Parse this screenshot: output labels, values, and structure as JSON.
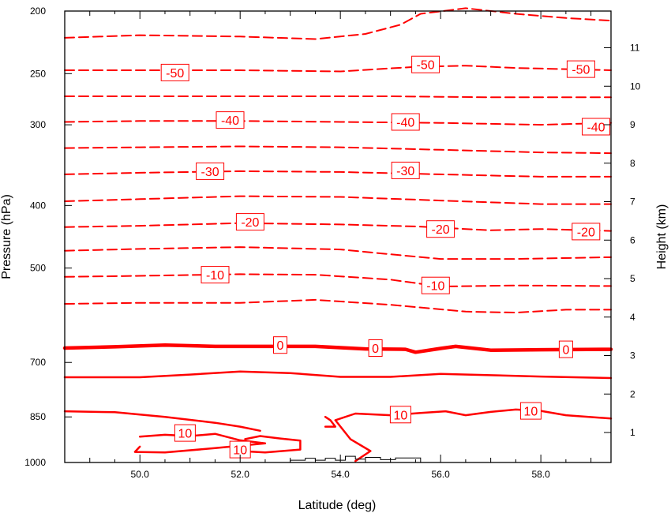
{
  "chart_data": {
    "type": "line",
    "xlabel": "Latitude (deg)",
    "ylabel_left": "Pressure (hPa)",
    "ylabel_right": "Height (km)",
    "xlim": [
      48.5,
      59.4
    ],
    "pressure_lim": [
      1000,
      200
    ],
    "x_ticks": [
      {
        "value": 50.0,
        "label": "50.0"
      },
      {
        "value": 52.0,
        "label": "52.0"
      },
      {
        "value": 54.0,
        "label": "54.0"
      },
      {
        "value": 56.0,
        "label": "56.0"
      },
      {
        "value": 58.0,
        "label": "58.0"
      }
    ],
    "pressure_ticks": [
      {
        "value": 200,
        "label": "200"
      },
      {
        "value": 250,
        "label": "250"
      },
      {
        "value": 300,
        "label": "300"
      },
      {
        "value": 400,
        "label": "400"
      },
      {
        "value": 500,
        "label": "500"
      },
      {
        "value": 700,
        "label": "700"
      },
      {
        "value": 850,
        "label": "850"
      },
      {
        "value": 1000,
        "label": "1000"
      }
    ],
    "height_ticks": [
      {
        "value": 1,
        "label": "1"
      },
      {
        "value": 2,
        "label": "2"
      },
      {
        "value": 3,
        "label": "3"
      },
      {
        "value": 4,
        "label": "4"
      },
      {
        "value": 5,
        "label": "5"
      },
      {
        "value": 6,
        "label": "6"
      },
      {
        "value": 7,
        "label": "7"
      },
      {
        "value": 8,
        "label": "8"
      },
      {
        "value": 9,
        "label": "9"
      },
      {
        "value": 10,
        "label": "10"
      },
      {
        "value": 11,
        "label": "11"
      }
    ],
    "contour_color": "#ff0000",
    "series": [
      {
        "level": -55,
        "style": "dashed",
        "points": [
          [
            48.5,
            220
          ],
          [
            50,
            218
          ],
          [
            52,
            219
          ],
          [
            53.5,
            221
          ],
          [
            54.5,
            217
          ],
          [
            55.2,
            210
          ],
          [
            55.6,
            202
          ],
          [
            56.5,
            198
          ],
          [
            57.5,
            202
          ],
          [
            58.5,
            205
          ],
          [
            59.4,
            207
          ]
        ]
      },
      {
        "level": -50,
        "style": "dashed",
        "points": [
          [
            48.5,
            247
          ],
          [
            50,
            247
          ],
          [
            52,
            247
          ],
          [
            54,
            248
          ],
          [
            55.5,
            244
          ],
          [
            56.5,
            243
          ],
          [
            57.5,
            245
          ],
          [
            59.4,
            247
          ]
        ]
      },
      {
        "level": -45,
        "style": "dashed",
        "points": [
          [
            48.5,
            271
          ],
          [
            52,
            271
          ],
          [
            55,
            271
          ],
          [
            57,
            272
          ],
          [
            59.4,
            272
          ]
        ]
      },
      {
        "level": -40,
        "style": "dashed",
        "points": [
          [
            48.5,
            297
          ],
          [
            50,
            296
          ],
          [
            52,
            296
          ],
          [
            54,
            297
          ],
          [
            56,
            298
          ],
          [
            58,
            300
          ],
          [
            59.4,
            298
          ]
        ]
      },
      {
        "level": -35,
        "style": "dashed",
        "points": [
          [
            48.5,
            326
          ],
          [
            50,
            325
          ],
          [
            52,
            324
          ],
          [
            54,
            325
          ],
          [
            56,
            328
          ],
          [
            58,
            331
          ],
          [
            59.4,
            332
          ]
        ]
      },
      {
        "level": -30,
        "style": "dashed",
        "points": [
          [
            48.5,
            358
          ],
          [
            50,
            356
          ],
          [
            52,
            354
          ],
          [
            54,
            355
          ],
          [
            56,
            358
          ],
          [
            58,
            361
          ],
          [
            59.4,
            361
          ]
        ]
      },
      {
        "level": -25,
        "style": "dashed",
        "points": [
          [
            48.5,
            394
          ],
          [
            50,
            391
          ],
          [
            52,
            387
          ],
          [
            54,
            388
          ],
          [
            56,
            393
          ],
          [
            58,
            398
          ],
          [
            59.4,
            398
          ]
        ]
      },
      {
        "level": -20,
        "style": "dashed",
        "points": [
          [
            48.5,
            432
          ],
          [
            50,
            430
          ],
          [
            52,
            426
          ],
          [
            54,
            428
          ],
          [
            55.5,
            431
          ],
          [
            57,
            437
          ],
          [
            58,
            435
          ],
          [
            59.4,
            438
          ]
        ]
      },
      {
        "level": -15,
        "style": "dashed",
        "points": [
          [
            48.5,
            470
          ],
          [
            50,
            467
          ],
          [
            52,
            464
          ],
          [
            54,
            468
          ],
          [
            55,
            476
          ],
          [
            56,
            484
          ],
          [
            57.5,
            484
          ],
          [
            59.4,
            481
          ]
        ]
      },
      {
        "level": -10,
        "style": "dashed",
        "points": [
          [
            48.5,
            516
          ],
          [
            50,
            514
          ],
          [
            52,
            511
          ],
          [
            53.5,
            512
          ],
          [
            55,
            521
          ],
          [
            56,
            534
          ],
          [
            57.5,
            532
          ],
          [
            59.4,
            533
          ]
        ]
      },
      {
        "level": -5,
        "style": "dashed",
        "points": [
          [
            48.5,
            568
          ],
          [
            50,
            566
          ],
          [
            52,
            566
          ],
          [
            53.5,
            560
          ],
          [
            55,
            570
          ],
          [
            56.5,
            584
          ],
          [
            57.5,
            586
          ],
          [
            58.5,
            580
          ],
          [
            59.4,
            580
          ]
        ]
      },
      {
        "level": 0,
        "style": "thick",
        "points": [
          [
            48.5,
            665
          ],
          [
            49.5,
            662
          ],
          [
            50.5,
            658
          ],
          [
            51.5,
            661
          ],
          [
            52.5,
            661
          ],
          [
            53.5,
            661
          ],
          [
            54.5,
            667
          ],
          [
            55.3,
            668
          ],
          [
            55.5,
            675
          ],
          [
            56,
            666
          ],
          [
            56.3,
            661
          ],
          [
            57,
            670
          ],
          [
            58,
            669
          ],
          [
            59.4,
            668
          ]
        ]
      },
      {
        "level": 5,
        "style": "solid",
        "points": [
          [
            48.5,
            738
          ],
          [
            50,
            738
          ],
          [
            51,
            731
          ],
          [
            52,
            723
          ],
          [
            53,
            727
          ],
          [
            54,
            737
          ],
          [
            55,
            737
          ],
          [
            56,
            729
          ],
          [
            58,
            736
          ],
          [
            59.4,
            740
          ]
        ]
      },
      {
        "level": 10,
        "style": "solid",
        "points": [
          [
            48.5,
            833
          ],
          [
            49.5,
            836
          ],
          [
            50.5,
            850
          ],
          [
            51.5,
            868
          ],
          [
            52,
            880
          ],
          [
            52.4,
            893
          ]
        ]
      },
      {
        "level": 10,
        "style": "solid",
        "points": [
          [
            54.3,
            995
          ],
          [
            54.6,
            960
          ],
          [
            54.2,
            920
          ],
          [
            53.9,
            860
          ],
          [
            54.3,
            840
          ],
          [
            55,
            845
          ],
          [
            55.6,
            838
          ],
          [
            56.1,
            833
          ],
          [
            56.5,
            845
          ],
          [
            57,
            835
          ],
          [
            57.5,
            828
          ],
          [
            58,
            832
          ],
          [
            58.5,
            845
          ],
          [
            59.4,
            855
          ]
        ]
      },
      {
        "level": 10,
        "style": "solid",
        "points": [
          [
            50,
            912
          ],
          [
            50.5,
            906
          ],
          [
            51,
            910
          ],
          [
            51.5,
            903
          ],
          [
            52,
            924
          ],
          [
            52.5,
            934
          ],
          [
            51.5,
            950
          ],
          [
            50.5,
            965
          ],
          [
            49.9,
            963
          ],
          [
            50,
            945
          ]
        ]
      },
      {
        "level": 10,
        "style": "solid",
        "points": [
          [
            52.1,
            920
          ],
          [
            52.4,
            910
          ],
          [
            52.8,
            918
          ],
          [
            53.2,
            925
          ],
          [
            53.2,
            955
          ],
          [
            52.5,
            965
          ],
          [
            52,
            960
          ]
        ]
      },
      {
        "level": 10,
        "style": "solid",
        "points": [
          [
            53.7,
            850
          ],
          [
            53.8,
            860
          ],
          [
            53.9,
            880
          ],
          [
            53.7,
            880
          ]
        ]
      }
    ],
    "contour_labels": [
      {
        "text": "-50",
        "x": 50.7,
        "p": 249
      },
      {
        "text": "-50",
        "x": 55.7,
        "p": 242
      },
      {
        "text": "-50",
        "x": 58.8,
        "p": 246
      },
      {
        "text": "-40",
        "x": 51.8,
        "p": 295
      },
      {
        "text": "-40",
        "x": 55.3,
        "p": 297
      },
      {
        "text": "-40",
        "x": 59.1,
        "p": 302
      },
      {
        "text": "-30",
        "x": 51.4,
        "p": 354
      },
      {
        "text": "-30",
        "x": 55.3,
        "p": 353
      },
      {
        "text": "-20",
        "x": 52.2,
        "p": 424
      },
      {
        "text": "-20",
        "x": 56.0,
        "p": 435
      },
      {
        "text": "-20",
        "x": 58.9,
        "p": 439
      },
      {
        "text": "-10",
        "x": 51.5,
        "p": 512
      },
      {
        "text": "-10",
        "x": 55.9,
        "p": 532
      },
      {
        "text": "0",
        "x": 52.8,
        "p": 658
      },
      {
        "text": "0",
        "x": 54.7,
        "p": 665
      },
      {
        "text": "0",
        "x": 58.5,
        "p": 668
      },
      {
        "text": "10",
        "x": 55.2,
        "p": 843
      },
      {
        "text": "10",
        "x": 57.8,
        "p": 832
      },
      {
        "text": "10",
        "x": 50.9,
        "p": 900
      },
      {
        "text": "10",
        "x": 52.0,
        "p": 955
      }
    ],
    "terrain_steps": [
      [
        53.0,
        1000
      ],
      [
        53.0,
        992
      ],
      [
        53.3,
        992
      ],
      [
        53.3,
        985
      ],
      [
        53.5,
        985
      ],
      [
        53.5,
        992
      ],
      [
        53.7,
        992
      ],
      [
        53.7,
        985
      ],
      [
        53.9,
        985
      ],
      [
        53.9,
        992
      ],
      [
        54.1,
        992
      ],
      [
        54.1,
        978
      ],
      [
        54.3,
        978
      ],
      [
        54.3,
        988
      ],
      [
        54.5,
        988
      ],
      [
        54.5,
        982
      ],
      [
        54.8,
        982
      ],
      [
        54.8,
        990
      ],
      [
        55.1,
        990
      ],
      [
        55.1,
        984
      ],
      [
        55.6,
        984
      ],
      [
        55.6,
        1000
      ]
    ],
    "terrain_color": "#000000"
  }
}
